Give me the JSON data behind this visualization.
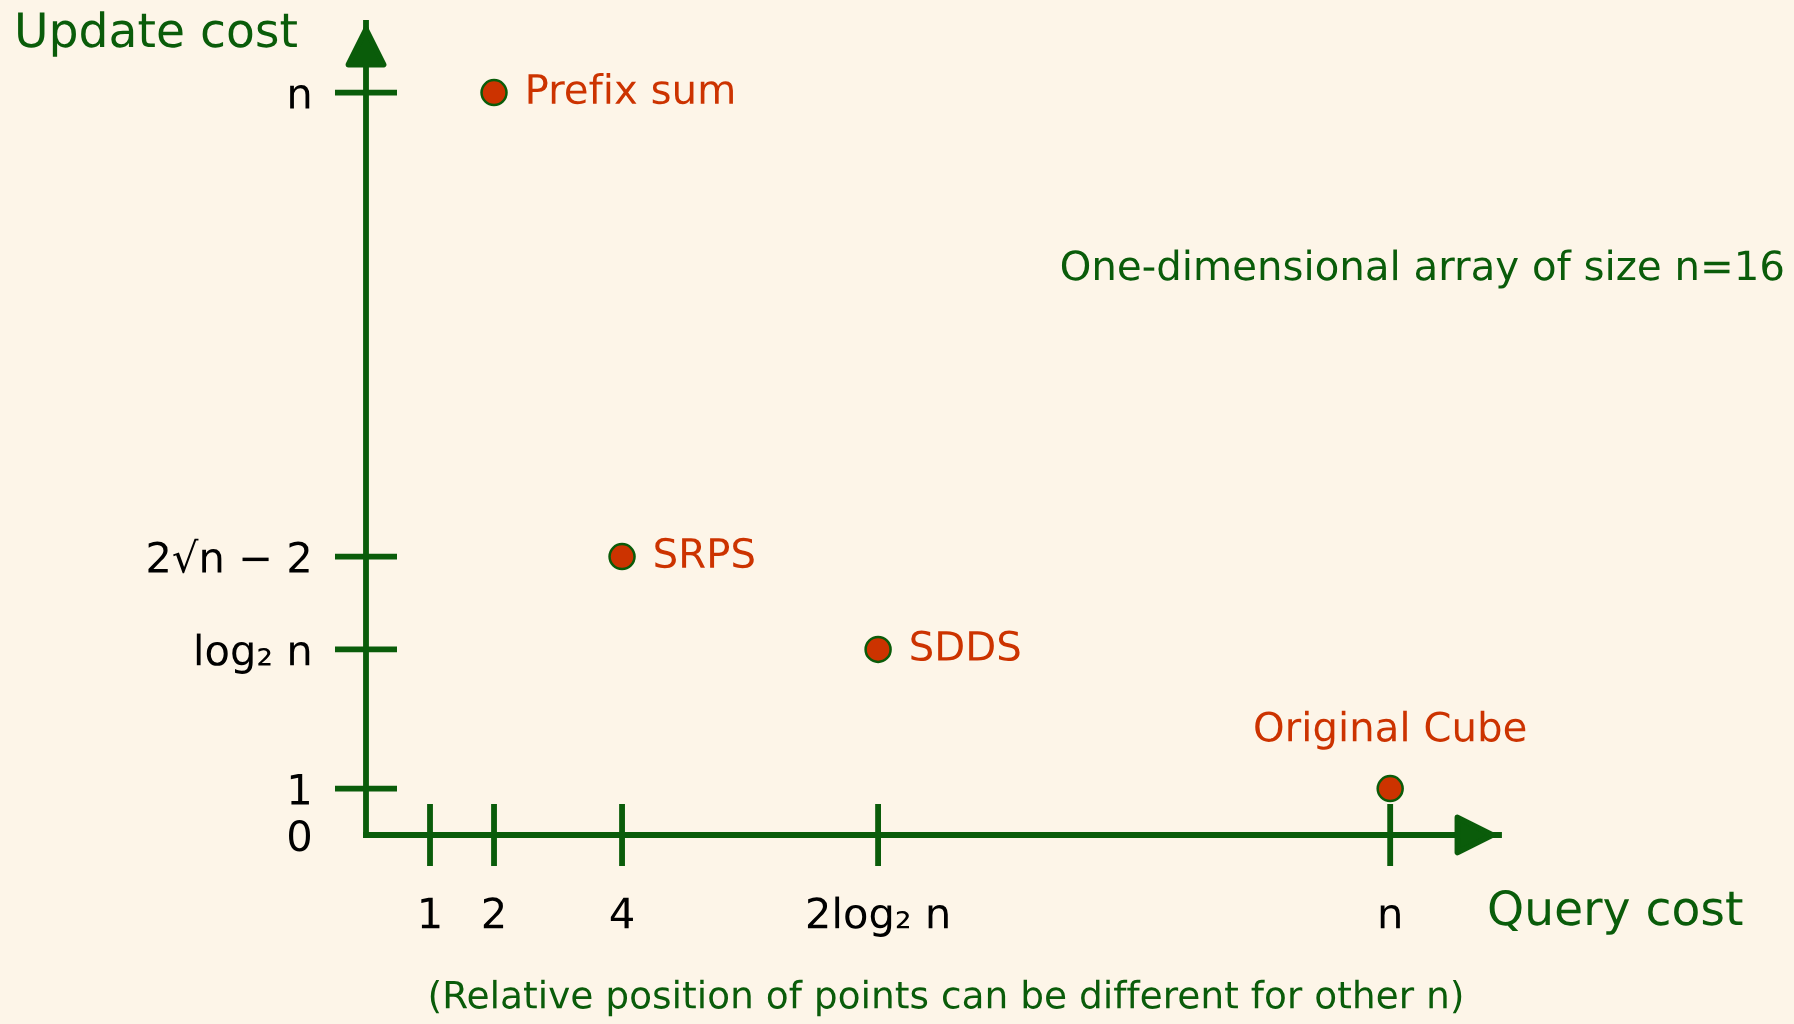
{
  "chart_data": {
    "type": "scatter",
    "xlabel": "Query cost",
    "ylabel": "Update cost",
    "annotations": [
      "One-dimensional array of size n=16",
      "(Relative position of points can be different for other n)"
    ],
    "categories": [
      null,
      "1",
      "2",
      null,
      "4",
      null,
      null,
      null,
      "2log₂ n",
      null,
      null,
      null,
      null,
      null,
      null,
      null,
      "n"
    ],
    "series": [
      {
        "name": "Prefix sum",
        "color": "#cc3300",
        "x": [
          "2"
        ],
        "values": [
          16
        ]
      },
      {
        "name": "SRPS",
        "color": "#cc3300",
        "x": [
          "4"
        ],
        "values": [
          6
        ]
      },
      {
        "name": "SDDS",
        "color": "#cc3300",
        "x": [
          "2log₂ n"
        ],
        "values": [
          4
        ]
      },
      {
        "name": "Original Cube",
        "color": "#cc3300",
        "x": [
          "n"
        ],
        "values": [
          1
        ]
      }
    ],
    "ylim": [
      0,
      17.5
    ],
    "yticks": [
      0,
      1,
      {
        "value": 4,
        "label": "log₂ n"
      },
      {
        "value": 6,
        "label": "2√n − 2"
      },
      {
        "value": 16,
        "label": "n"
      }
    ],
    "grid": false,
    "legend": false,
    "marker": "circle"
  }
}
